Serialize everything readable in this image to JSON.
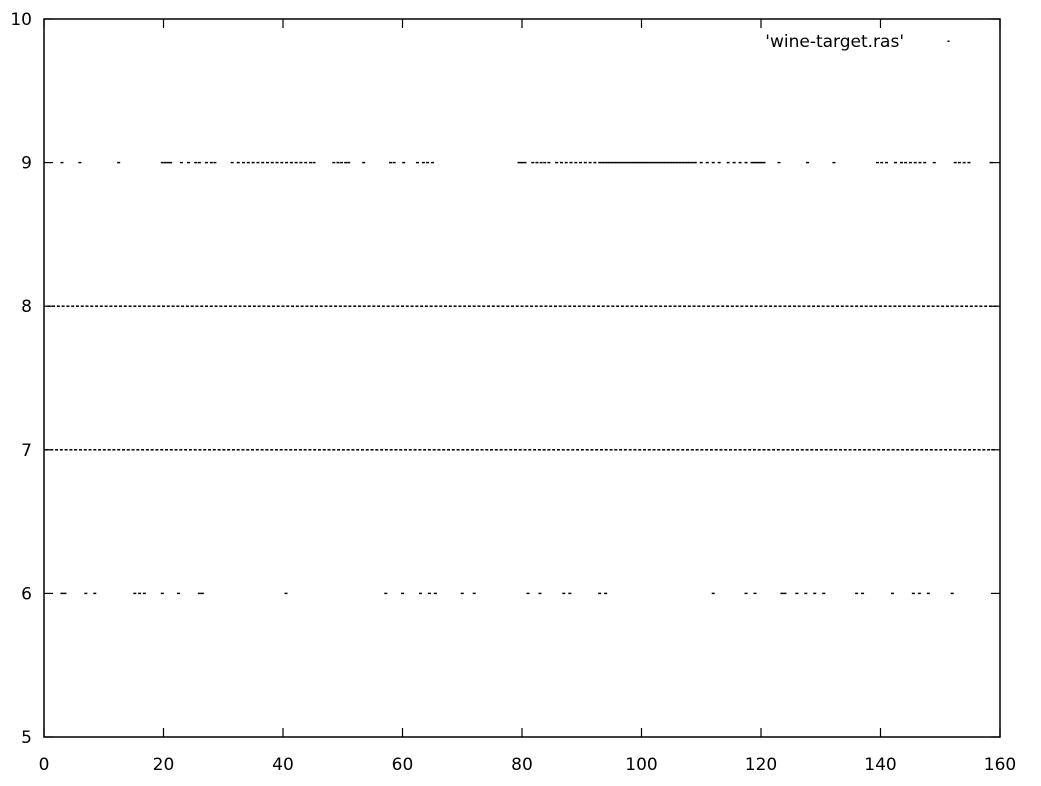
{
  "chart_data": {
    "type": "scatter",
    "title": "",
    "xlabel": "",
    "ylabel": "",
    "xlim": [
      0,
      160
    ],
    "ylim": [
      5,
      10
    ],
    "grid": false,
    "legend_position": "top-right",
    "x_ticks": [
      "0",
      "20",
      "40",
      "60",
      "80",
      "100",
      "120",
      "140",
      "160"
    ],
    "y_ticks": [
      "5",
      "6",
      "7",
      "8",
      "9",
      "10"
    ],
    "series": [
      {
        "name": "'wine-target.ras'",
        "color": "#000000",
        "marker": "dot",
        "points_by_level": [
          {
            "y": 6,
            "x": [
              3.0,
              3.5,
              7.0,
              8.5,
              15.2,
              16.0,
              16.8,
              19.8,
              22.5,
              26.0,
              26.5,
              40.5,
              57.2,
              60.0,
              63.0,
              64.5,
              65.5,
              70.0,
              72.0,
              81.0,
              83.0,
              87.0,
              88.0,
              93.0,
              94.0,
              112.0,
              117.5,
              119.0,
              123.5,
              124.0,
              126.0,
              127.5,
              129.0,
              130.5,
              136.0,
              137.0,
              142.0,
              145.5,
              146.5,
              148.0,
              152.0
            ]
          },
          {
            "y": 7,
            "x": [
              0.5,
              1.3,
              2.1,
              2.9,
              3.7,
              4.5,
              5.3,
              6.1,
              6.9,
              7.7,
              8.5,
              9.3,
              10.1,
              10.9,
              11.7,
              12.5,
              13.3,
              14.1,
              14.9,
              15.7,
              16.5,
              17.3,
              18.1,
              18.9,
              19.7,
              20.5,
              21.3,
              22.1,
              22.9,
              23.7,
              24.5,
              25.3,
              26.1,
              26.9,
              27.7,
              28.5,
              29.3,
              30.1,
              30.9,
              31.7,
              32.5,
              33.3,
              34.1,
              34.9,
              35.7,
              36.5,
              37.3,
              38.1,
              38.9,
              39.7,
              40.5,
              41.3,
              42.1,
              42.9,
              43.7,
              44.5,
              45.3,
              46.1,
              46.9,
              47.7,
              48.5,
              49.3,
              50.1,
              50.9,
              51.7,
              52.5,
              53.3,
              54.1,
              54.9,
              55.7,
              56.5,
              57.3,
              58.1,
              58.9,
              59.7,
              60.5,
              61.3,
              62.1,
              62.9,
              63.7,
              64.5,
              65.3,
              66.1,
              66.9,
              67.7,
              68.5,
              69.3,
              70.1,
              70.9,
              71.7,
              72.5,
              73.3,
              74.1,
              74.9,
              75.7,
              76.5,
              77.3,
              78.1,
              78.9,
              79.7,
              80.5,
              81.3,
              82.1,
              82.9,
              83.7,
              84.5,
              85.3,
              86.1,
              86.9,
              87.7,
              88.5,
              89.3,
              90.1,
              90.9,
              91.7,
              92.5,
              93.3,
              94.1,
              94.9,
              95.7,
              96.5,
              97.3,
              98.1,
              98.9,
              99.7,
              100.5,
              101.3,
              102.1,
              102.9,
              103.7,
              104.5,
              105.3,
              106.1,
              106.9,
              107.7,
              108.5,
              109.3,
              110.1,
              110.9,
              111.7,
              112.5,
              113.3,
              114.1,
              114.9,
              115.7,
              116.5,
              117.3,
              118.1,
              118.9,
              119.7,
              120.5,
              121.3,
              122.1,
              122.9,
              123.7,
              124.5,
              125.3,
              126.1,
              126.9,
              127.7,
              128.5,
              129.3,
              130.1,
              130.9,
              131.7,
              132.5,
              133.3,
              134.1,
              134.9,
              135.7,
              136.5,
              137.3,
              138.1,
              138.9,
              139.7,
              140.5,
              141.3,
              142.1,
              142.9,
              143.7,
              144.5,
              145.3,
              146.1,
              146.9,
              147.7,
              148.5,
              149.3,
              150.1,
              150.9,
              151.7,
              152.5,
              153.3,
              154.1,
              154.9,
              155.7,
              156.5,
              157.3,
              158.1,
              158.9
            ]
          },
          {
            "y": 8,
            "x": [
              0.8,
              1.6,
              2.4,
              3.2,
              4.0,
              4.8,
              5.6,
              6.4,
              7.2,
              8.0,
              8.8,
              9.6,
              10.4,
              11.2,
              12.0,
              12.8,
              13.6,
              14.4,
              15.2,
              16.0,
              16.8,
              17.6,
              18.4,
              19.2,
              20.0,
              20.8,
              21.6,
              22.4,
              23.2,
              24.0,
              24.8,
              25.6,
              26.4,
              27.2,
              28.0,
              28.8,
              29.6,
              30.4,
              31.2,
              32.0,
              32.8,
              33.6,
              34.4,
              35.2,
              36.0,
              36.8,
              37.6,
              38.4,
              39.2,
              40.0,
              40.8,
              41.6,
              42.4,
              43.2,
              44.0,
              44.8,
              45.6,
              46.4,
              47.2,
              48.0,
              48.8,
              49.6,
              50.4,
              51.2,
              52.0,
              52.8,
              53.6,
              54.4,
              55.2,
              56.0,
              56.8,
              57.6,
              58.4,
              59.2,
              60.0,
              60.8,
              61.6,
              62.4,
              63.2,
              64.0,
              64.8,
              65.6,
              66.4,
              67.2,
              68.0,
              68.8,
              69.6,
              70.4,
              71.2,
              72.0,
              72.8,
              73.6,
              74.4,
              75.2,
              76.0,
              76.8,
              77.6,
              78.4,
              79.2,
              80.0,
              80.8,
              81.6,
              82.4,
              83.2,
              84.0,
              84.8,
              85.6,
              86.4,
              87.2,
              88.0,
              88.8,
              89.6,
              90.4,
              91.2,
              92.0,
              92.8,
              93.6,
              94.4,
              95.2,
              96.0,
              96.8,
              97.6,
              98.4,
              99.2,
              100.0,
              100.8,
              101.6,
              102.4,
              103.2,
              104.0,
              104.8,
              105.6,
              106.4,
              107.2,
              108.0,
              108.8,
              109.6,
              110.4,
              111.2,
              112.0,
              112.8,
              113.6,
              114.4,
              115.2,
              116.0,
              116.8,
              117.6,
              118.4,
              119.2,
              120.0,
              120.8,
              121.6,
              122.4,
              123.2,
              124.0,
              124.8,
              125.6,
              126.4,
              127.2,
              128.0,
              128.8,
              129.6,
              130.4,
              131.2,
              132.0,
              132.8,
              133.6,
              134.4,
              135.2,
              136.0,
              136.8,
              137.6,
              138.4,
              139.2,
              140.0,
              140.8,
              141.6,
              142.4,
              143.2,
              144.0,
              144.8,
              145.6,
              146.4,
              147.2,
              148.0,
              148.8,
              149.6,
              150.4,
              151.2,
              152.0,
              152.8,
              153.6,
              154.4,
              155.2,
              156.0,
              156.8,
              157.6,
              158.4,
              159.2
            ]
          },
          {
            "y": 9,
            "x": [
              3.0,
              6.0,
              12.5,
              19.8,
              20.3,
              20.8,
              21.2,
              23.0,
              24.2,
              25.4,
              26.0,
              27.2,
              28.0,
              28.6,
              31.5,
              32.5,
              33.4,
              34.2,
              35.0,
              35.8,
              36.6,
              37.4,
              38.2,
              39.0,
              39.8,
              40.6,
              41.4,
              42.2,
              43.0,
              43.8,
              44.6,
              45.2,
              48.5,
              49.2,
              49.8,
              50.5,
              51.0,
              53.5,
              58.0,
              58.6,
              60.2,
              62.5,
              63.5,
              64.2,
              65.0,
              79.5,
              80.0,
              80.5,
              81.8,
              82.5,
              83.2,
              83.8,
              84.5,
              85.8,
              86.6,
              87.4,
              88.2,
              89.0,
              89.8,
              90.6,
              91.4,
              92.2,
              93.0,
              93.5,
              94.0,
              94.5,
              95.0,
              95.5,
              96.0,
              96.5,
              97.0,
              97.5,
              98.0,
              98.5,
              99.0,
              99.5,
              100.0,
              100.5,
              101.0,
              101.5,
              102.0,
              102.5,
              103.0,
              103.5,
              104.0,
              104.5,
              105.0,
              105.5,
              106.0,
              106.5,
              107.0,
              107.5,
              108.0,
              108.5,
              109.0,
              110.0,
              111.0,
              112.0,
              113.0,
              114.5,
              115.5,
              116.5,
              117.5,
              118.5,
              119.0,
              119.5,
              120.0,
              120.5,
              123.0,
              127.8,
              132.2,
              139.5,
              140.2,
              141.0,
              142.5,
              143.5,
              144.2,
              145.0,
              145.8,
              146.6,
              147.4,
              149.0,
              152.5,
              153.2,
              154.0,
              154.8,
              158.5
            ]
          }
        ]
      }
    ]
  }
}
